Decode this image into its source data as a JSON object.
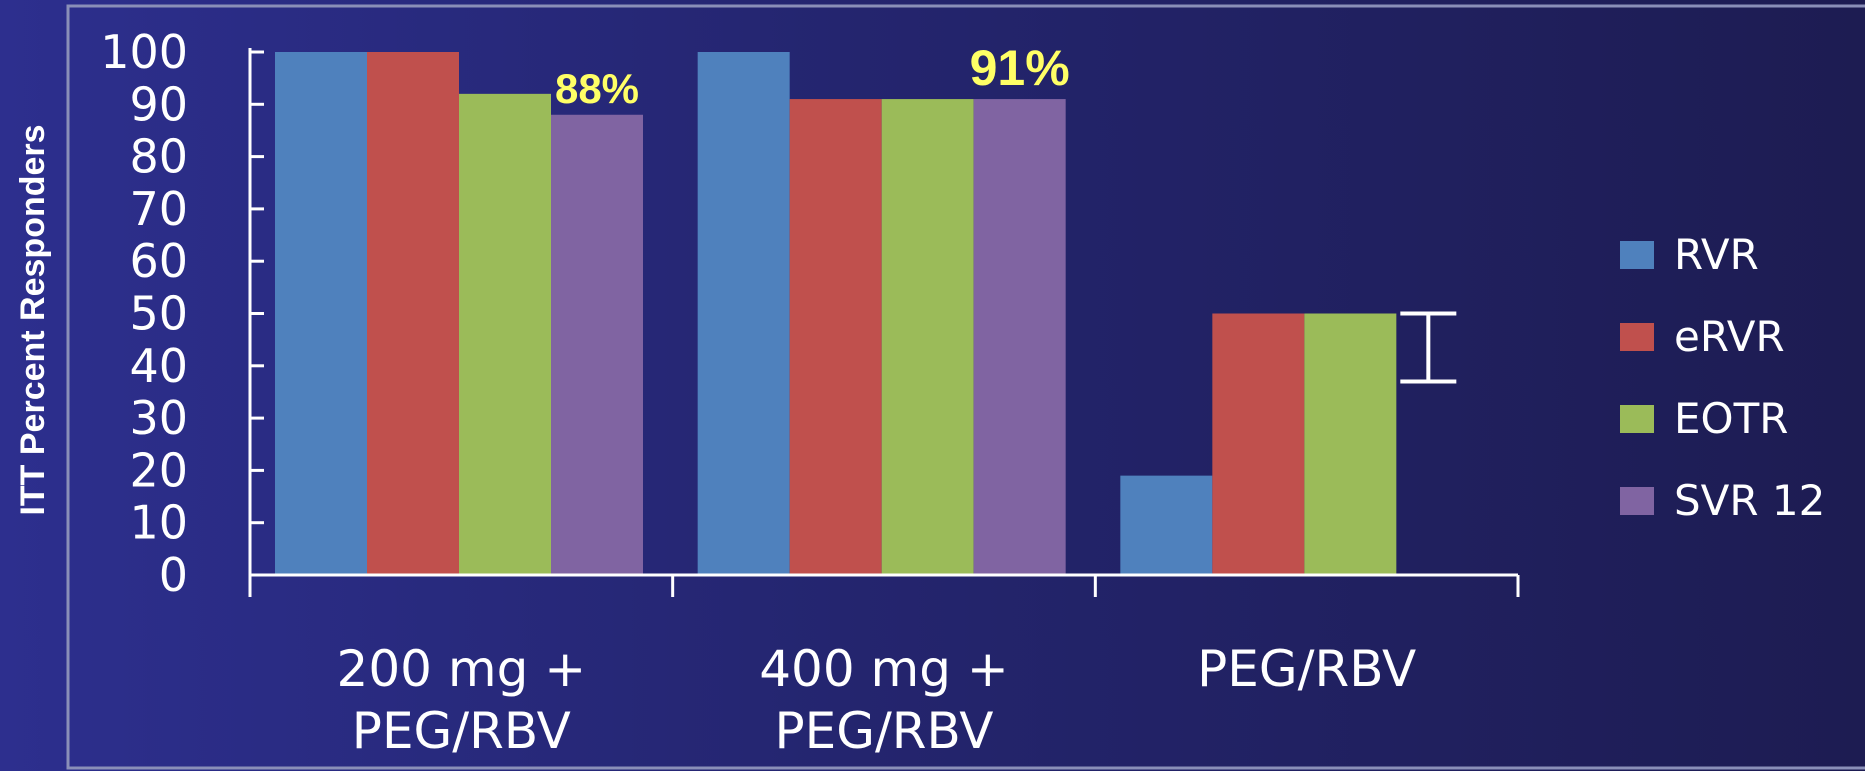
{
  "chart_data": {
    "type": "bar",
    "ylabel": "ITT Percent Responders",
    "ylim": [
      0,
      100
    ],
    "yticks": [
      0,
      10,
      20,
      30,
      40,
      50,
      60,
      70,
      80,
      90,
      100
    ],
    "categories": [
      [
        "200 mg +",
        "PEG/RBV"
      ],
      [
        "400 mg +",
        "PEG/RBV"
      ],
      [
        "PEG/RBV"
      ]
    ],
    "series": [
      {
        "name": "RVR",
        "color": "#4f81bd",
        "values": [
          100,
          100,
          19
        ]
      },
      {
        "name": "eRVR",
        "color": "#c0504d",
        "values": [
          100,
          91,
          50
        ]
      },
      {
        "name": "EOTR",
        "color": "#9bbb59",
        "values": [
          92,
          91,
          50
        ]
      },
      {
        "name": "SVR 12",
        "color": "#8064a2",
        "values": [
          88,
          91,
          null
        ]
      }
    ],
    "annotations": [
      {
        "text": "88%",
        "category": 0,
        "series": 3
      },
      {
        "text": "91%",
        "category": 1,
        "series": 3
      }
    ],
    "error_bar": {
      "category": 2,
      "range": [
        37,
        50
      ]
    },
    "legend_position": "right",
    "grid": false
  }
}
